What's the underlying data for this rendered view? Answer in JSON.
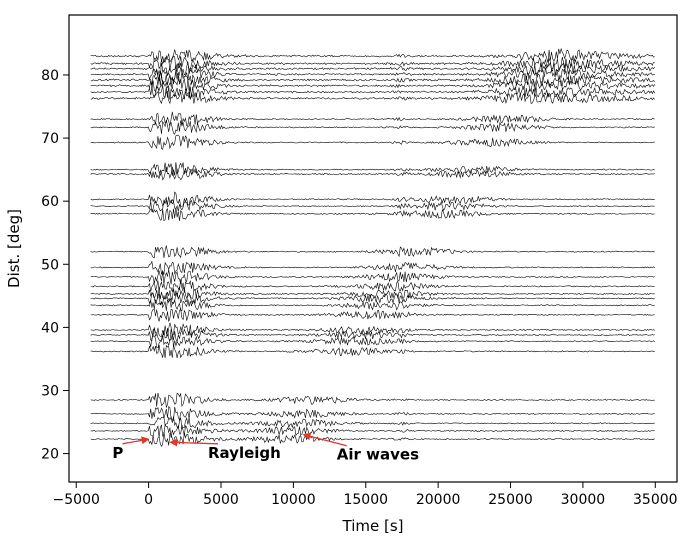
{
  "chart_data": {
    "type": "line",
    "title": "",
    "xlabel": "Time [s]",
    "ylabel": "Dist. [deg]",
    "xlim": [
      -5500,
      36500
    ],
    "ylim": [
      15.5,
      89.5
    ],
    "x_ticks": [
      -5000,
      0,
      5000,
      10000,
      15000,
      20000,
      25000,
      30000,
      35000
    ],
    "x_tick_labels": [
      "−5000",
      "0",
      "5000",
      "10000",
      "15000",
      "20000",
      "25000",
      "30000",
      "35000"
    ],
    "y_ticks": [
      20,
      30,
      40,
      50,
      60,
      70,
      80
    ],
    "y_tick_labels": [
      "20",
      "30",
      "40",
      "50",
      "60",
      "70",
      "80"
    ],
    "grid": false,
    "trace_color": "#000000",
    "annotation_color": "#e0392b",
    "trace_time_range": [
      -4000,
      35000
    ],
    "station_distances": [
      22.3,
      23.6,
      24.8,
      26.3,
      28.5,
      36.2,
      37.8,
      38.8,
      39.6,
      42.0,
      43.5,
      44.6,
      45.3,
      46.5,
      48.0,
      49.5,
      52.0,
      58.0,
      59.2,
      60.3,
      64.3,
      65.0,
      69.3,
      71.7,
      73.0,
      76.3,
      77.3,
      78.3,
      79.2,
      80.1,
      81.0,
      81.8,
      83.0
    ],
    "annotations": [
      {
        "label": "P",
        "text_x": -2500,
        "text_y": 20.6,
        "arrow_x": 0,
        "arrow_y": 22.3
      },
      {
        "label": "Rayleigh",
        "text_x": 4100,
        "text_y": 20.6,
        "arrow_x": 1500,
        "arrow_y": 21.8
      },
      {
        "label": "Air waves",
        "text_x": 13000,
        "text_y": 20.3,
        "arrow_x": 10700,
        "arrow_y": 23.0
      }
    ]
  }
}
